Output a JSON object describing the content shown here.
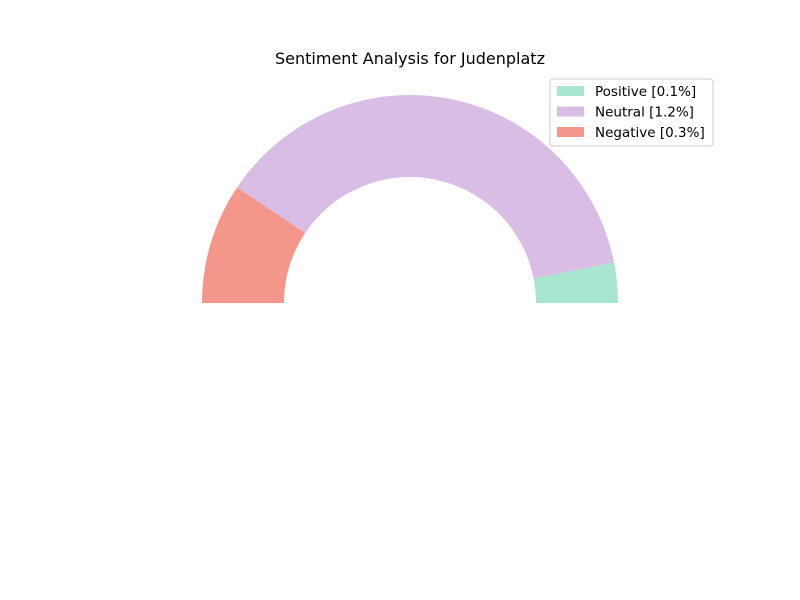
{
  "chart_data": {
    "type": "pie",
    "subtype": "half-donut",
    "title": "Sentiment Analysis for Judenplatz",
    "legend_position": "top-right",
    "series": [
      {
        "name": "Positive [0.1%]",
        "label": "Positive",
        "value": 0.1,
        "color": "#a8e6cf"
      },
      {
        "name": "Neutral [1.2%]",
        "label": "Neutral",
        "value": 1.2,
        "color": "#d9bde4"
      },
      {
        "name": "Negative [0.3%]",
        "label": "Negative",
        "value": 0.3,
        "color": "#f4968a"
      }
    ]
  }
}
